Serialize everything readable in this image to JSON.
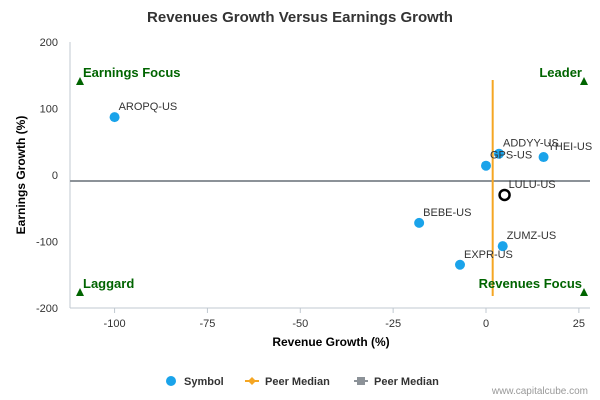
{
  "chart_data": {
    "type": "scatter",
    "title": "Revenues Growth Versus Earnings Growth",
    "xlabel": "Revenue Growth (%)",
    "ylabel": "Earnings Growth (%)",
    "xlim": [
      -112,
      28
    ],
    "ylim": [
      -200,
      200
    ],
    "x_ticks": [
      -100,
      -75,
      -50,
      -25,
      0,
      25
    ],
    "y_ticks": [
      -200,
      -100,
      0,
      100,
      200
    ],
    "grid": false,
    "points": [
      {
        "label": "AROPQ-US",
        "x": -100,
        "y": 87
      },
      {
        "label": "YHEI-US",
        "x": 15.5,
        "y": 27
      },
      {
        "label": "ADDYY-US",
        "x": 3.5,
        "y": 32
      },
      {
        "label": "GPS-US",
        "x": 0,
        "y": 14
      },
      {
        "label": "BEBE-US",
        "x": -18,
        "y": -72
      },
      {
        "label": "ZUMZ-US",
        "x": 4.5,
        "y": -107
      },
      {
        "label": "EXPR-US",
        "x": -7,
        "y": -135
      }
    ],
    "highlight": {
      "label": "LULU-US",
      "x": 5,
      "y": -30
    },
    "peer_median_x": 1.8,
    "peer_median_y": -9,
    "quadrants": {
      "top_left": "Earnings Focus",
      "top_right": "Leader",
      "bottom_left": "Laggard",
      "bottom_right": "Revenues Focus"
    },
    "legend": [
      {
        "name": "Symbol",
        "color": "#1aa3ea"
      },
      {
        "name": "Peer Median",
        "color": "#f5a623"
      },
      {
        "name": "Peer Median",
        "color": "#8c9298"
      }
    ],
    "legend_position": "bottom-center"
  },
  "credit": "www.capitalcube.com",
  "colors": {
    "point": "#1aa3ea",
    "median_x": "#f5a623",
    "median_y": "#8c9298",
    "quadrant": "#006400",
    "axis": "#c0c8d0"
  }
}
